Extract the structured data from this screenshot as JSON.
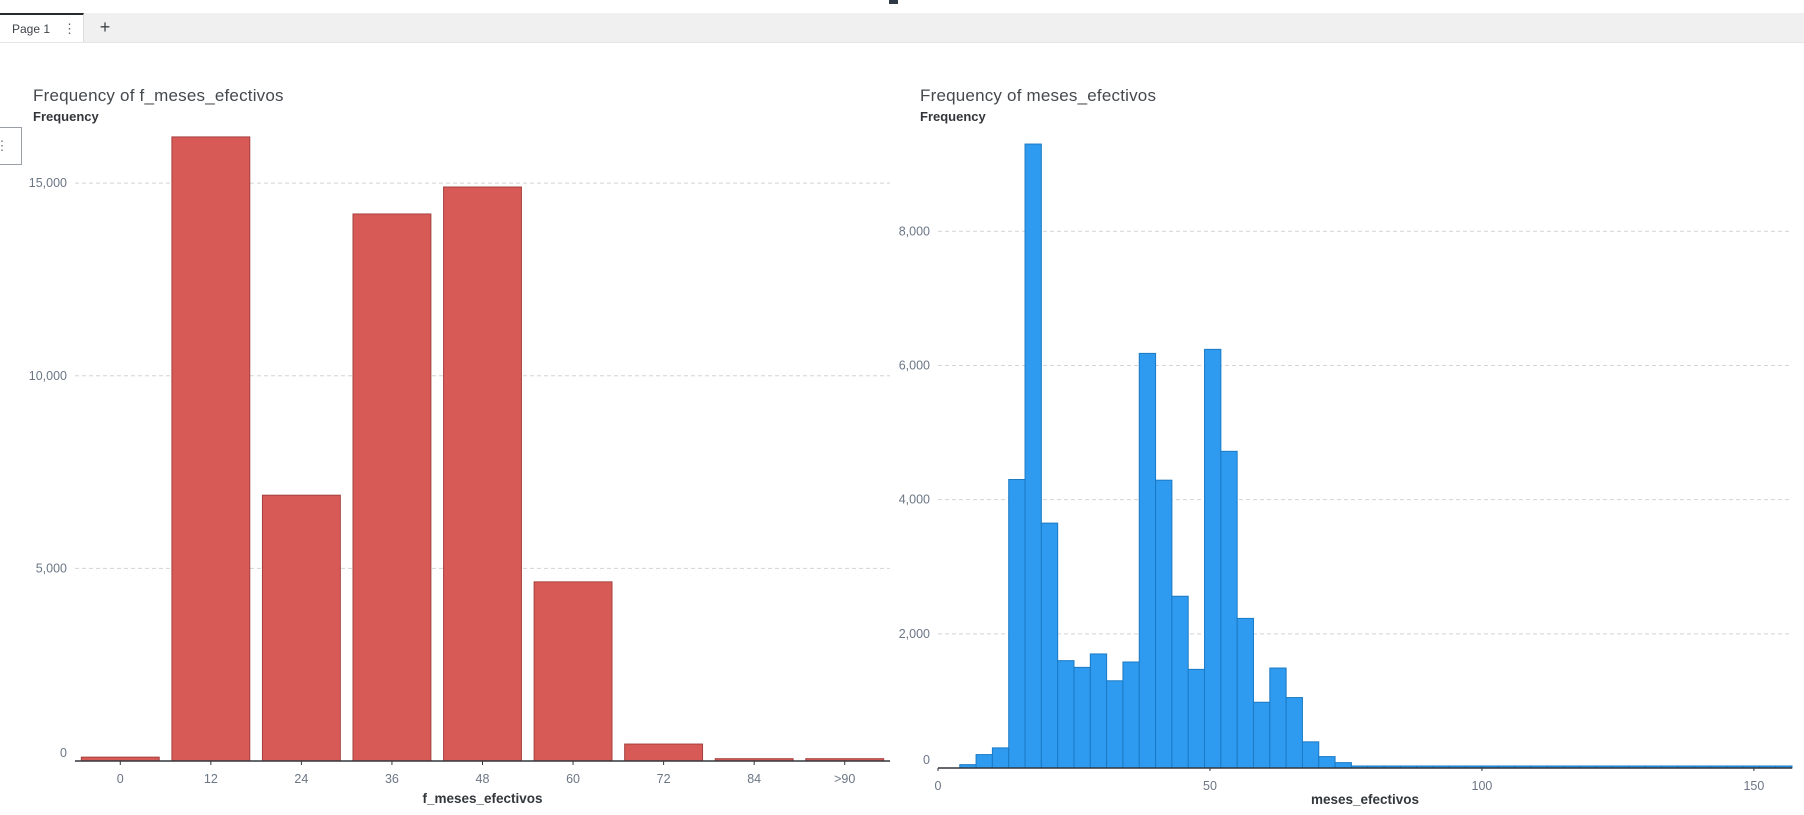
{
  "app": {
    "tab_bar": {
      "active_tab_label": "Page 1",
      "tab_menu_icon": "kebab-menu",
      "kebab_glyph": "⋮",
      "add_tab_glyph": "+"
    },
    "flyout_handle_glyph": "⋮"
  },
  "colors": {
    "red_bar_fill": "#D85A56",
    "red_bar_border": "#A4403D",
    "blue_bar_fill": "#2E9BF0",
    "blue_bar_border": "#1B7AC4",
    "gridline": "#d2d4d6",
    "axis_line": "#32373c",
    "tick_label": "#6b7685",
    "title_text": "#45494e",
    "axis_title_text": "#33373b"
  },
  "chart_data": [
    {
      "type": "bar",
      "title": "Frequency of f_meses_efectivos",
      "ylabel": "Frequency",
      "xlabel": "f_meses_efectivos",
      "categories": [
        "0",
        "12",
        "24",
        "36",
        "48",
        "60",
        "72",
        "84",
        ">90"
      ],
      "values": [
        100,
        16200,
        6900,
        14200,
        14900,
        4650,
        440,
        60,
        60
      ],
      "yticks": [
        0,
        5000,
        10000,
        15000
      ],
      "ylim": [
        0,
        16250
      ],
      "grid": "dashed-horizontal",
      "legend": "none",
      "bar_color": "#D85A56",
      "bar_border_color": "#A4403D"
    },
    {
      "type": "histogram",
      "title": "Frequency of meses_efectivos",
      "ylabel": "Frequency",
      "xlabel": "meses_efectivos",
      "xlim": [
        0,
        157
      ],
      "xticks": [
        0,
        50,
        100,
        150
      ],
      "bin_start": 4,
      "bin_width": 3,
      "values": [
        50,
        200,
        300,
        4300,
        9300,
        3650,
        1600,
        1500,
        1700,
        1300,
        1580,
        6180,
        4290,
        2560,
        1470,
        6240,
        4720,
        2230,
        980,
        1490,
        1050,
        390,
        170,
        80,
        30,
        30,
        30,
        30,
        30,
        30,
        30,
        30,
        30,
        30,
        30,
        30,
        30,
        30,
        30,
        30,
        30,
        30,
        30,
        30,
        30,
        30,
        30,
        30,
        30,
        30,
        30
      ],
      "yticks": [
        0,
        2000,
        4000,
        6000,
        8000
      ],
      "ylim": [
        0,
        9450
      ],
      "grid": "dashed-horizontal",
      "legend": "none",
      "bar_color": "#2E9BF0",
      "bar_border_color": "#1B7AC4"
    }
  ]
}
